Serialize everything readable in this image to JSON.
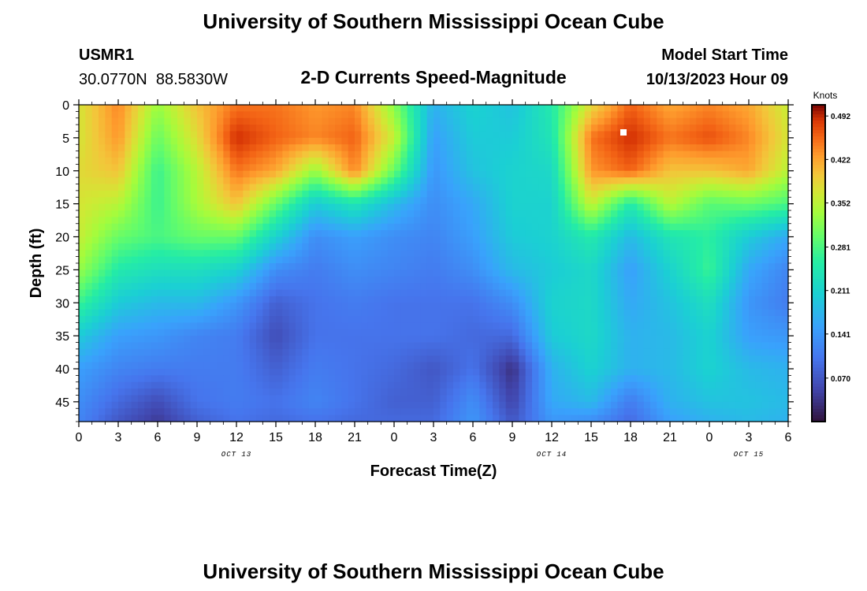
{
  "title": "University of Southern Mississippi Ocean Cube",
  "footer_title": "University of Southern Mississippi Ocean Cube",
  "station": {
    "id": "USMR1",
    "coords": "30.0770N  88.5830W"
  },
  "plot_title": "2-D Currents Speed-Magnitude",
  "model": {
    "label": "Model Start Time",
    "value": "10/13/2023 Hour 09"
  },
  "chart_data": {
    "type": "heatmap",
    "title": "2-D Currents Speed-Magnitude",
    "xlabel": "Forecast Time(Z)",
    "ylabel": "Depth (ft)",
    "xlim": [
      0,
      54
    ],
    "ylim": [
      0,
      48
    ],
    "x_units": "hours since 10/13/2023 00Z",
    "y_inverted": true,
    "x_tick_values": [
      0,
      3,
      6,
      9,
      12,
      15,
      18,
      21,
      24,
      27,
      30,
      33,
      36,
      39,
      42,
      45,
      48,
      51,
      54
    ],
    "x_tick_labels": [
      "0",
      "3",
      "6",
      "9",
      "12",
      "15",
      "18",
      "21",
      "0",
      "3",
      "6",
      "9",
      "12",
      "15",
      "18",
      "21",
      "0",
      "3",
      "6"
    ],
    "y_tick_values": [
      0,
      5,
      10,
      15,
      20,
      25,
      30,
      35,
      40,
      45
    ],
    "y_tick_labels": [
      "0",
      "5",
      "10",
      "15",
      "20",
      "25",
      "30",
      "35",
      "40",
      "45"
    ],
    "day_labels": [
      {
        "x": 12,
        "text": "OCT 13"
      },
      {
        "x": 36,
        "text": "OCT 14"
      },
      {
        "x": 51,
        "text": "OCT 15"
      }
    ],
    "colorbar": {
      "units": "Knots",
      "range": [
        0.0,
        0.51
      ],
      "tick_values": [
        0.07,
        0.141,
        0.211,
        0.281,
        0.352,
        0.422,
        0.492
      ],
      "tick_labels": [
        "0.070",
        "0.141",
        "0.211",
        "0.281",
        "0.352",
        "0.422",
        "0.492"
      ]
    },
    "speed_grid": {
      "times": [
        0,
        3,
        6,
        9,
        12,
        15,
        18,
        21,
        24,
        27,
        30,
        33,
        36,
        39,
        42,
        45,
        48,
        51,
        54
      ],
      "depths": [
        0,
        5,
        10,
        15,
        20,
        25,
        30,
        35,
        40,
        45,
        48
      ],
      "values": [
        [
          0.37,
          0.44,
          0.33,
          0.4,
          0.45,
          0.45,
          0.43,
          0.44,
          0.32,
          0.17,
          0.21,
          0.19,
          0.25,
          0.38,
          0.46,
          0.42,
          0.44,
          0.42,
          0.36
        ],
        [
          0.37,
          0.43,
          0.3,
          0.38,
          0.49,
          0.46,
          0.44,
          0.46,
          0.36,
          0.15,
          0.2,
          0.2,
          0.24,
          0.45,
          0.49,
          0.45,
          0.47,
          0.44,
          0.37
        ],
        [
          0.38,
          0.4,
          0.27,
          0.35,
          0.45,
          0.42,
          0.33,
          0.44,
          0.3,
          0.14,
          0.19,
          0.21,
          0.22,
          0.43,
          0.46,
          0.4,
          0.4,
          0.42,
          0.35
        ],
        [
          0.37,
          0.35,
          0.27,
          0.34,
          0.4,
          0.3,
          0.2,
          0.24,
          0.18,
          0.13,
          0.16,
          0.21,
          0.21,
          0.36,
          0.25,
          0.35,
          0.29,
          0.3,
          0.28
        ],
        [
          0.36,
          0.3,
          0.28,
          0.3,
          0.3,
          0.21,
          0.13,
          0.15,
          0.13,
          0.12,
          0.15,
          0.2,
          0.21,
          0.25,
          0.18,
          0.24,
          0.26,
          0.2,
          0.16
        ],
        [
          0.33,
          0.25,
          0.23,
          0.23,
          0.21,
          0.13,
          0.11,
          0.13,
          0.12,
          0.11,
          0.13,
          0.18,
          0.2,
          0.22,
          0.15,
          0.21,
          0.27,
          0.16,
          0.12
        ],
        [
          0.27,
          0.2,
          0.18,
          0.18,
          0.14,
          0.08,
          0.1,
          0.11,
          0.1,
          0.1,
          0.1,
          0.13,
          0.21,
          0.22,
          0.16,
          0.19,
          0.23,
          0.14,
          0.11
        ],
        [
          0.2,
          0.15,
          0.14,
          0.12,
          0.11,
          0.06,
          0.1,
          0.1,
          0.1,
          0.1,
          0.09,
          0.09,
          0.2,
          0.22,
          0.17,
          0.18,
          0.21,
          0.15,
          0.14
        ],
        [
          0.15,
          0.12,
          0.11,
          0.11,
          0.11,
          0.08,
          0.11,
          0.1,
          0.09,
          0.07,
          0.1,
          0.03,
          0.17,
          0.21,
          0.17,
          0.18,
          0.21,
          0.18,
          0.17
        ],
        [
          0.13,
          0.09,
          0.06,
          0.1,
          0.11,
          0.1,
          0.12,
          0.1,
          0.08,
          0.08,
          0.13,
          0.05,
          0.16,
          0.18,
          0.11,
          0.17,
          0.19,
          0.19,
          0.18
        ],
        [
          0.12,
          0.07,
          0.04,
          0.08,
          0.1,
          0.09,
          0.1,
          0.09,
          0.09,
          0.09,
          0.14,
          0.07,
          0.14,
          0.13,
          0.09,
          0.15,
          0.17,
          0.18,
          0.17
        ]
      ]
    }
  }
}
